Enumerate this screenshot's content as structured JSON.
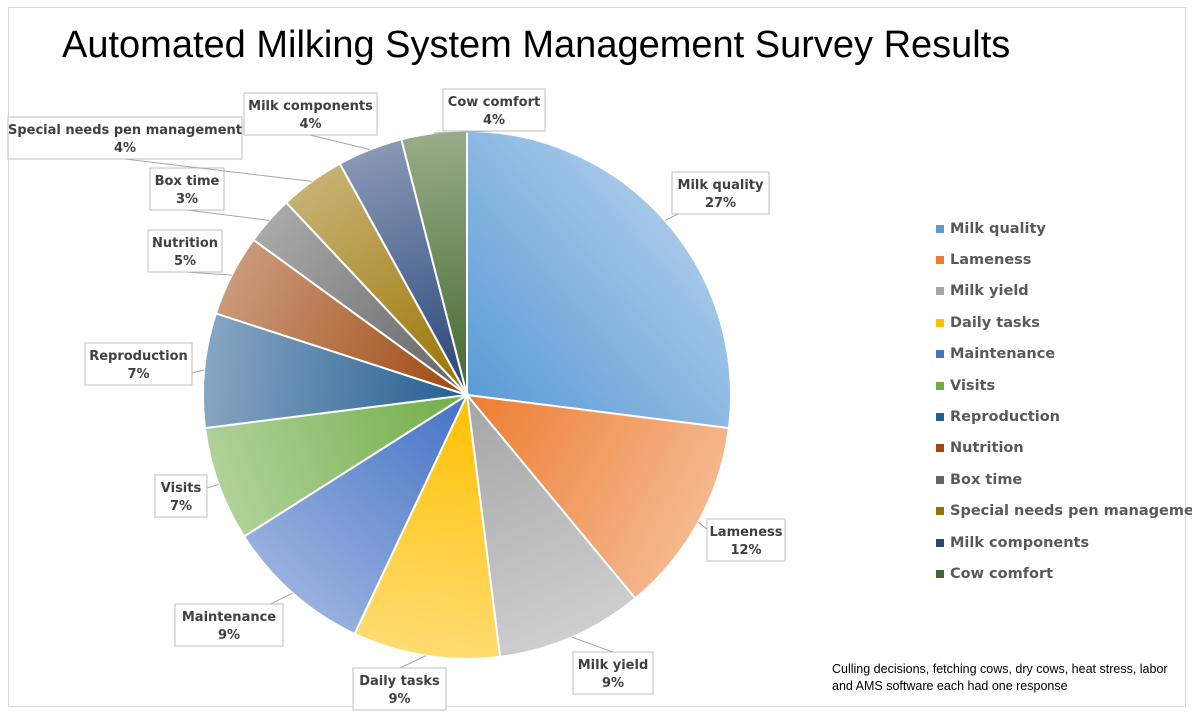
{
  "chart_data": {
    "type": "pie",
    "title": "Automated Milking System Management Survey Results",
    "slices": [
      {
        "label": "Milk quality",
        "value": 27,
        "display": "27%",
        "color": "#5b9bd5"
      },
      {
        "label": "Lameness",
        "value": 12,
        "display": "12%",
        "color": "#ed7d31"
      },
      {
        "label": "Milk yield",
        "value": 9,
        "display": "9%",
        "color": "#a5a5a5"
      },
      {
        "label": "Daily tasks",
        "value": 9,
        "display": "9%",
        "color": "#ffc000"
      },
      {
        "label": "Maintenance",
        "value": 9,
        "display": "9%",
        "color": "#4472c4"
      },
      {
        "label": "Visits",
        "value": 7,
        "display": "7%",
        "color": "#70ad47"
      },
      {
        "label": "Reproduction",
        "value": 7,
        "display": "7%",
        "color": "#255e91"
      },
      {
        "label": "Nutrition",
        "value": 5,
        "display": "5%",
        "color": "#9e480e"
      },
      {
        "label": "Box time",
        "value": 3,
        "display": "3%",
        "color": "#636363"
      },
      {
        "label": "Special needs pen management",
        "value": 4,
        "display": "4%",
        "color": "#997300"
      },
      {
        "label": "Milk components",
        "value": 4,
        "display": "4%",
        "color": "#264478"
      },
      {
        "label": "Cow comfort",
        "value": 4,
        "display": "4%",
        "color": "#43682b"
      }
    ],
    "legend_position": "right",
    "start_angle": "12 o'clock",
    "direction": "clockwise"
  },
  "footnote": "Culling decisions, fetching cows, dry cows, heat stress, labor and AMS software each had one response"
}
